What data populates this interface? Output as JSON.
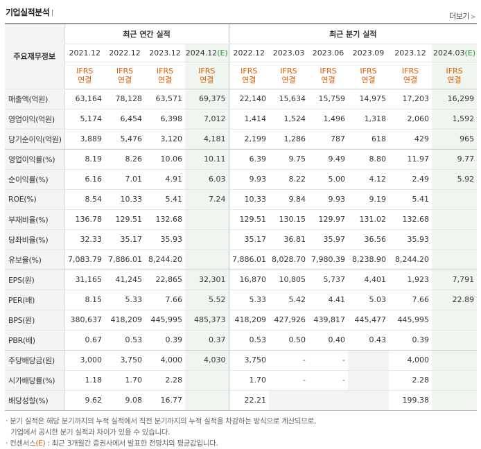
{
  "header": {
    "title": "기업실적분석",
    "more_label": "더보기"
  },
  "table": {
    "corner_label": "주요재무정보",
    "annual_group_label": "최근 연간 실적",
    "quarter_group_label": "최근 분기 실적",
    "annual_periods": [
      "2021.12",
      "2022.12",
      "2023.12",
      "2024.12(E)"
    ],
    "quarter_periods": [
      "2022.12",
      "2023.03",
      "2023.06",
      "2023.09",
      "2023.12",
      "2024.03(E)"
    ],
    "ifrs_line1": "IFRS",
    "ifrs_line2": "연결",
    "rows": [
      {
        "label": "매출액(억원)",
        "values": [
          "63,164",
          "78,128",
          "63,571",
          "69,375",
          "22,140",
          "15,634",
          "15,759",
          "14,975",
          "17,203",
          "16,299"
        ]
      },
      {
        "label": "영업이익(억원)",
        "values": [
          "5,174",
          "6,454",
          "6,398",
          "7,012",
          "1,414",
          "1,524",
          "1,496",
          "1,318",
          "2,060",
          "1,592"
        ]
      },
      {
        "label": "당기순이익(억원)",
        "values": [
          "3,889",
          "5,476",
          "3,120",
          "4,181",
          "2,199",
          "1,286",
          "787",
          "618",
          "429",
          "965"
        ]
      },
      {
        "label": "영업이익률(%)",
        "values": [
          "8.19",
          "8.26",
          "10.06",
          "10.11",
          "6.39",
          "9.75",
          "9.49",
          "8.80",
          "11.97",
          "9.77"
        ]
      },
      {
        "label": "순이익률(%)",
        "values": [
          "6.16",
          "7.01",
          "4.91",
          "6.03",
          "9.93",
          "8.22",
          "5.00",
          "4.12",
          "2.49",
          "5.92"
        ]
      },
      {
        "label": "ROE(%)",
        "values": [
          "8.54",
          "10.33",
          "5.41",
          "7.24",
          "10.33",
          "9.84",
          "9.93",
          "9.19",
          "5.41",
          ""
        ]
      },
      {
        "label": "부채비율(%)",
        "values": [
          "136.78",
          "129.51",
          "132.68",
          "",
          "129.51",
          "130.15",
          "129.97",
          "131.02",
          "132.68",
          ""
        ]
      },
      {
        "label": "당좌비율(%)",
        "values": [
          "32.33",
          "35.17",
          "35.93",
          "",
          "35.17",
          "36.81",
          "35.97",
          "36.56",
          "35.93",
          ""
        ]
      },
      {
        "label": "유보율(%)",
        "values": [
          "7,083.79",
          "7,886.01",
          "8,244.20",
          "",
          "7,886.01",
          "8,028.70",
          "7,980.39",
          "8,238.90",
          "8,244.20",
          ""
        ]
      },
      {
        "label": "EPS(원)",
        "values": [
          "31,165",
          "41,245",
          "22,865",
          "32,301",
          "16,870",
          "10,805",
          "5,737",
          "4,401",
          "1,923",
          "7,791"
        ]
      },
      {
        "label": "PER(배)",
        "values": [
          "8.15",
          "5.33",
          "7.66",
          "5.52",
          "5.33",
          "5.42",
          "4.41",
          "5.03",
          "7.66",
          "22.89"
        ]
      },
      {
        "label": "BPS(원)",
        "values": [
          "380,637",
          "418,209",
          "445,995",
          "485,373",
          "418,209",
          "427,926",
          "439,817",
          "445,477",
          "445,995",
          ""
        ]
      },
      {
        "label": "PBR(배)",
        "values": [
          "0.67",
          "0.53",
          "0.39",
          "0.37",
          "0.53",
          "0.50",
          "0.40",
          "0.43",
          "0.39",
          ""
        ]
      },
      {
        "label": "주당배당금(원)",
        "values": [
          "3,000",
          "3,750",
          "4,000",
          "4,030",
          "3,750",
          "-",
          "-",
          "",
          "4,000",
          ""
        ]
      },
      {
        "label": "시가배당률(%)",
        "values": [
          "1.18",
          "1.70",
          "2.28",
          "",
          "1.70",
          "-",
          "-",
          "",
          "2.28",
          ""
        ]
      },
      {
        "label": "배당성향(%)",
        "values": [
          "9.62",
          "9.08",
          "16.77",
          "",
          "22.21",
          "",
          "",
          "",
          "199.38",
          ""
        ]
      }
    ]
  },
  "notes": {
    "line1": "· 분기 실적은 해당 분기까지의 누적 실적에서 직전 분기까지의 누적 실적을 차감하는 방식으로 계산되므로,",
    "line2": "기업에서 공시한 분기 실적과 차이가 있을 수 있습니다.",
    "line3_prefix": "· 컨센서스",
    "line3_e": "(E)",
    "line3_suffix": " : 최근 3개월간 증권사에서 발표한 전망치의 평균값입니다."
  },
  "colors": {
    "ifrs": "#e05a00",
    "estimate_bg": "#eef6ef",
    "estimate_text": "#2e8b3a",
    "label_bg": "#f4f4f4"
  }
}
